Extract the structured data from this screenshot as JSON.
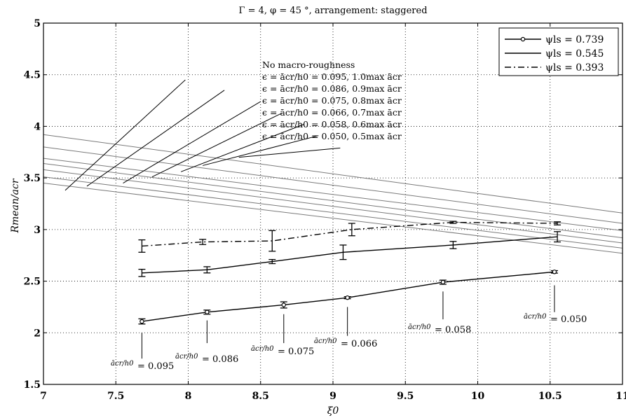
{
  "chart_data": {
    "type": "line",
    "title": "Γ = 4,  φ = 45 °, arrangement: staggered",
    "xlabel": "ξ0",
    "ylabel": "Rmean/acr",
    "xlim": [
      7,
      11
    ],
    "ylim": [
      1.5,
      5
    ],
    "xticks": [
      "7",
      "7.5",
      "8",
      "8.5",
      "9",
      "9.5",
      "10",
      "10.5",
      "11"
    ],
    "yticks": [
      "1.5",
      "2",
      "2.5",
      "3",
      "3.5",
      "4",
      "4.5",
      "5"
    ],
    "grid": true,
    "legend_position": "top-right",
    "series": [
      {
        "name": "ψls = 0.739",
        "style": "solid-circle",
        "points": [
          {
            "x": 7.68,
            "y": 2.11,
            "err": 0.025
          },
          {
            "x": 8.13,
            "y": 2.2,
            "err": 0.02
          },
          {
            "x": 8.66,
            "y": 2.27,
            "err": 0.03
          },
          {
            "x": 9.1,
            "y": 2.34,
            "err": 0.01
          },
          {
            "x": 9.76,
            "y": 2.49,
            "err": 0.02
          },
          {
            "x": 10.53,
            "y": 2.59,
            "err": 0.012
          }
        ]
      },
      {
        "name": "ψls = 0.545",
        "style": "solid",
        "points": [
          {
            "x": 7.68,
            "y": 2.58,
            "err": 0.035
          },
          {
            "x": 8.13,
            "y": 2.61,
            "err": 0.03
          },
          {
            "x": 8.58,
            "y": 2.69,
            "err": 0.02
          },
          {
            "x": 9.07,
            "y": 2.78,
            "err": 0.07
          },
          {
            "x": 9.83,
            "y": 2.85,
            "err": 0.035
          },
          {
            "x": 10.55,
            "y": 2.93,
            "err": 0.05
          }
        ]
      },
      {
        "name": "ψls = 0.393",
        "style": "dash-dot",
        "points": [
          {
            "x": 7.68,
            "y": 2.84,
            "err": 0.06
          },
          {
            "x": 8.1,
            "y": 2.88,
            "err": 0.025
          },
          {
            "x": 8.58,
            "y": 2.89,
            "err": 0.1
          },
          {
            "x": 9.13,
            "y": 3.0,
            "err": 0.06
          },
          {
            "x": 9.83,
            "y": 3.07,
            "err": 0.01
          },
          {
            "x": 10.55,
            "y": 3.06,
            "err": 0.015
          }
        ]
      }
    ],
    "roughness_lines": [
      {
        "label": "No macro-roughness",
        "x": [
          7,
          11
        ],
        "y": [
          3.92,
          3.16
        ]
      },
      {
        "label": "ϵ = ācr/h0 = 0.095, 1.0max ācr",
        "x": [
          7,
          11
        ],
        "y": [
          3.8,
          3.06
        ]
      },
      {
        "label": "ϵ = ācr/h0 = 0.086, 0.9max ācr",
        "x": [
          7,
          11
        ],
        "y": [
          3.69,
          2.99
        ]
      },
      {
        "label": "ϵ = ācr/h0 = 0.075, 0.8max ācr",
        "x": [
          7,
          11
        ],
        "y": [
          3.64,
          2.92
        ]
      },
      {
        "label": "ϵ = ācr/h0 = 0.066, 0.7max ācr",
        "x": [
          7,
          11
        ],
        "y": [
          3.58,
          2.87
        ]
      },
      {
        "label": "ϵ = ācr/h0 = 0.058, 0.6max ācr",
        "x": [
          7,
          11
        ],
        "y": [
          3.51,
          2.82
        ]
      },
      {
        "label": "ϵ = ācr/h0 = 0.050, 0.5max ācr",
        "x": [
          7,
          11
        ],
        "y": [
          3.45,
          2.77
        ]
      }
    ],
    "point_annotations": [
      {
        "fraction": "ācr/h0",
        "value": "= 0.095"
      },
      {
        "fraction": "ācr/h0",
        "value": "= 0.086"
      },
      {
        "fraction": "ācr/h0",
        "value": "= 0.075"
      },
      {
        "fraction": "ācr/h0",
        "value": "= 0.066"
      },
      {
        "fraction": "ācr/h0",
        "value": "= 0.058"
      },
      {
        "fraction": "ācr/h0",
        "value": "= 0.050"
      }
    ]
  }
}
